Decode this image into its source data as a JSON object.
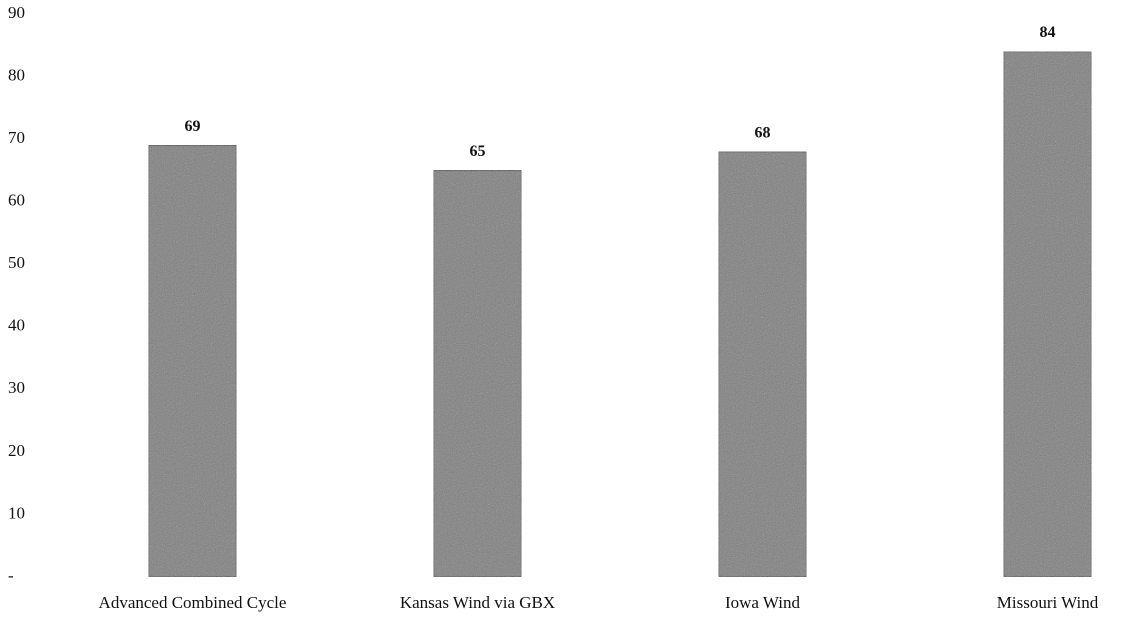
{
  "chart_data": {
    "type": "bar",
    "categories": [
      "Advanced Combined Cycle",
      "Kansas Wind via GBX",
      "Iowa Wind",
      "Missouri Wind"
    ],
    "values": [
      69,
      65,
      68,
      84
    ],
    "color": "#7f7f7f",
    "ylim": [
      0,
      90
    ],
    "yticks": [
      {
        "value": 0,
        "label": "-"
      },
      10,
      20,
      30,
      40,
      50,
      60,
      70,
      80,
      90
    ],
    "grid": false
  }
}
